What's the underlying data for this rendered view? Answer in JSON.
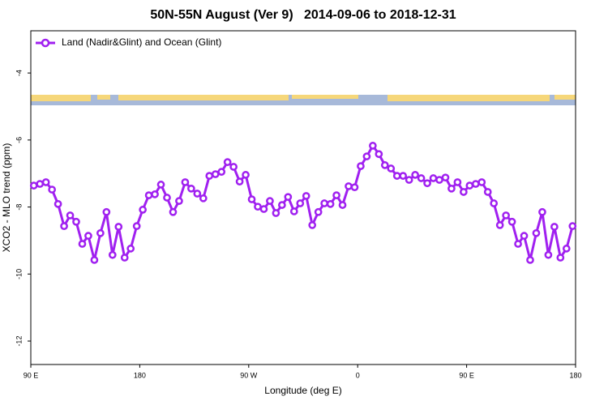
{
  "chart_data": {
    "type": "line",
    "title": "50N-55N August (Ver 9)   2014-09-06 to 2018-12-31",
    "x_label": "Longitude (deg E)",
    "y_label": "XCO2 - MLO trend (ppm)",
    "xlim": [
      90,
      540
    ],
    "ylim": [
      -12.7,
      -2.74
    ],
    "xticks": [
      {
        "value": 90,
        "label": "90 E"
      },
      180,
      {
        "value": 270,
        "label": "90 W"
      },
      {
        "value": 360,
        "label": "0"
      },
      {
        "value": 450,
        "label": "90 E"
      },
      {
        "value": 540,
        "label": "180"
      }
    ],
    "yticks": [
      -12,
      -10,
      -8,
      -6,
      -4
    ],
    "legend_position": "top-left",
    "x": [
      92.5,
      97.5,
      102.5,
      107.5,
      112.5,
      117.5,
      122.5,
      127.5,
      132.5,
      137.5,
      142.5,
      147.5,
      152.5,
      157.5,
      162.5,
      167.5,
      172.5,
      177.5,
      182.5,
      187.5,
      192.5,
      197.5,
      202.5,
      207.5,
      212.5,
      217.5,
      222.5,
      227.5,
      232.5,
      237.5,
      242.5,
      247.5,
      252.5,
      257.5,
      262.5,
      267.5,
      272.5,
      277.5,
      282.5,
      287.5,
      292.5,
      297.5,
      302.5,
      307.5,
      312.5,
      317.5,
      322.5,
      327.5,
      332.5,
      337.5,
      342.5,
      347.5,
      352.5,
      357.5,
      362.5,
      367.5,
      372.5,
      377.5,
      382.5,
      387.5,
      392.5,
      397.5,
      402.5,
      407.5,
      412.5,
      417.5,
      422.5,
      427.5,
      432.5,
      437.5,
      442.5,
      447.5,
      452.5,
      457.5,
      462.5,
      467.5,
      472.5,
      477.5,
      482.5,
      487.5,
      492.5,
      497.5,
      502.5,
      507.5,
      512.5,
      517.5,
      522.5,
      527.5,
      532.5,
      537.5
    ],
    "series": [
      {
        "name": "Land (Nadir&Glint) and Ocean (Glint)",
        "color": "#a020f0",
        "values": [
          -7.36,
          -7.31,
          -7.26,
          -7.48,
          -7.91,
          -8.57,
          -8.25,
          -8.44,
          -9.1,
          -8.86,
          -9.58,
          -8.78,
          -8.15,
          -9.43,
          -8.59,
          -9.51,
          -9.24,
          -8.57,
          -8.08,
          -7.65,
          -7.62,
          -7.33,
          -7.72,
          -8.15,
          -7.82,
          -7.26,
          -7.45,
          -7.6,
          -7.74,
          -7.07,
          -7.02,
          -6.95,
          -6.66,
          -6.8,
          -7.24,
          -7.04,
          -7.77,
          -7.99,
          -8.06,
          -7.82,
          -8.18,
          -7.94,
          -7.7,
          -8.13,
          -7.89,
          -7.67,
          -8.54,
          -8.15,
          -7.89,
          -7.91,
          -7.65,
          -7.94,
          -7.38,
          -7.41,
          -6.78,
          -6.49,
          -6.17,
          -6.42,
          -6.75,
          -6.85,
          -7.07,
          -7.07,
          -7.19,
          -7.04,
          -7.14,
          -7.29,
          -7.14,
          -7.19,
          -7.12,
          -7.45,
          -7.26,
          -7.55,
          -7.36,
          -7.31,
          -7.26,
          -7.55,
          -7.89,
          -8.54,
          -8.25,
          -8.44,
          -9.1,
          -8.86,
          -9.58,
          -8.78,
          -8.15,
          -9.43,
          -8.59,
          -9.51,
          -9.24,
          -8.57
        ]
      }
    ]
  }
}
